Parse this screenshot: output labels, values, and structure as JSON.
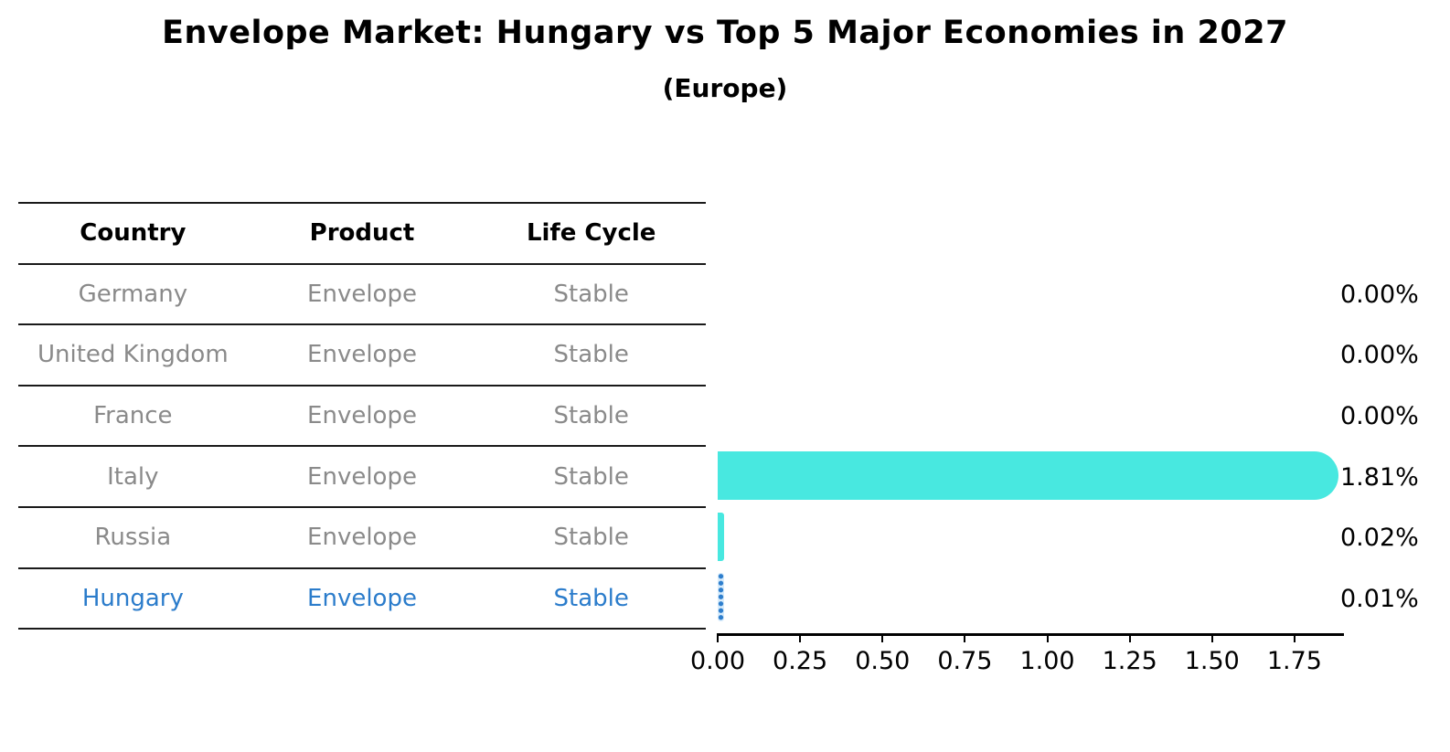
{
  "title": "Envelope Market: Hungary vs Top 5 Major Economies in 2027",
  "subtitle": "(Europe)",
  "table": {
    "headers": {
      "country": "Country",
      "product": "Product",
      "life_cycle": "Life Cycle"
    },
    "rows": [
      {
        "country": "Germany",
        "product": "Envelope",
        "life_cycle": "Stable"
      },
      {
        "country": "United Kingdom",
        "product": "Envelope",
        "life_cycle": "Stable"
      },
      {
        "country": "France",
        "product": "Envelope",
        "life_cycle": "Stable"
      },
      {
        "country": "Italy",
        "product": "Envelope",
        "life_cycle": "Stable"
      },
      {
        "country": "Russia",
        "product": "Envelope",
        "life_cycle": "Stable"
      },
      {
        "country": "Hungary",
        "product": "Envelope",
        "life_cycle": "Stable"
      }
    ],
    "highlighted_row": "Hungary"
  },
  "chart_data": {
    "type": "bar",
    "orientation": "horizontal",
    "title": "Envelope Market: Hungary vs Top 5 Major Economies in 2027 (Europe)",
    "categories": [
      "Germany",
      "United Kingdom",
      "France",
      "Italy",
      "Russia",
      "Hungary"
    ],
    "values": [
      0.0,
      0.0,
      0.0,
      1.81,
      0.02,
      0.01
    ],
    "value_labels": [
      "0.00%",
      "0.00%",
      "0.00%",
      "1.81%",
      "0.02%",
      "0.01%"
    ],
    "unit": "percent",
    "x_tick_labels": [
      "0.00",
      "0.25",
      "0.50",
      "0.75",
      "1.00",
      "1.25",
      "1.50",
      "1.75"
    ],
    "x_ticks": [
      0,
      0.25,
      0.5,
      0.75,
      1.0,
      1.25,
      1.5,
      1.75
    ],
    "xlim": [
      0,
      1.9
    ],
    "grid": false,
    "legend": null,
    "bar_color": "#48e8e0",
    "highlighted_category": "Hungary",
    "highlight_style": "blue dotted hatch bar",
    "highlight_color": "#2b7ccb"
  },
  "colors": {
    "title_text": "#000000",
    "row_text": "#8a8a8a",
    "highlight_text": "#2b7ccb",
    "table_line": "#1a1a1a",
    "axis": "#000000",
    "bar": "#48e8e0"
  }
}
